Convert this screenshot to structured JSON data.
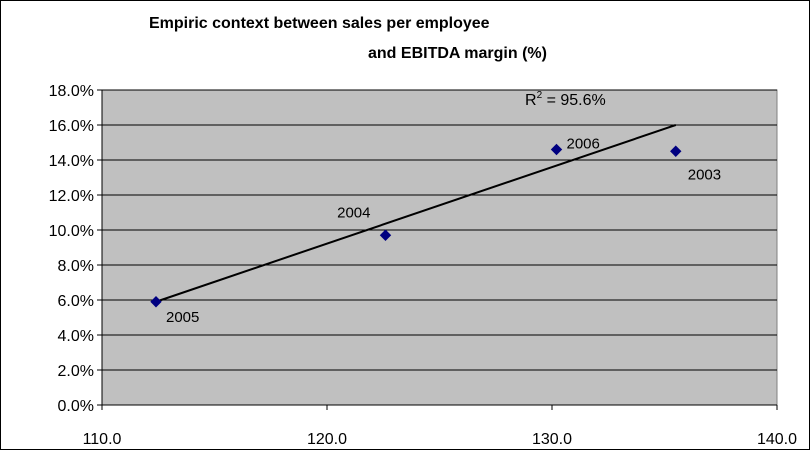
{
  "chart_data": {
    "type": "scatter",
    "title_lines": [
      "Empiric context between sales per employee",
      "and EBITDA margin (%)"
    ],
    "xlim": [
      110.0,
      140.0
    ],
    "ylim": [
      0.0,
      18.0
    ],
    "x_ticks": [
      110.0,
      120.0,
      130.0,
      140.0
    ],
    "x_tick_labels": [
      "110.0",
      "120.0",
      "130.0",
      "140.0"
    ],
    "y_ticks": [
      0,
      2,
      4,
      6,
      8,
      10,
      12,
      14,
      16,
      18
    ],
    "y_tick_labels": [
      "0.0%",
      "2.0%",
      "4.0%",
      "6.0%",
      "8.0%",
      "10.0%",
      "12.0%",
      "14.0%",
      "16.0%",
      "18.0%"
    ],
    "grid": "horizontal",
    "points": [
      {
        "label": "2005",
        "x": 112.4,
        "y": 5.9
      },
      {
        "label": "2004",
        "x": 122.6,
        "y": 9.7
      },
      {
        "label": "2006",
        "x": 130.2,
        "y": 14.6
      },
      {
        "label": "2003",
        "x": 135.5,
        "y": 14.5
      }
    ],
    "trendline": {
      "x": [
        112.4,
        135.5
      ],
      "y": [
        5.9,
        16.0
      ],
      "r2_label_prefix": "R",
      "r2_label_exponent": "2",
      "r2_label_suffix": " = 95.6%"
    },
    "colors": {
      "plot_background": "#c0c0c0",
      "marker": "#000080",
      "trendline": "#000000",
      "gridline": "#000000"
    }
  }
}
